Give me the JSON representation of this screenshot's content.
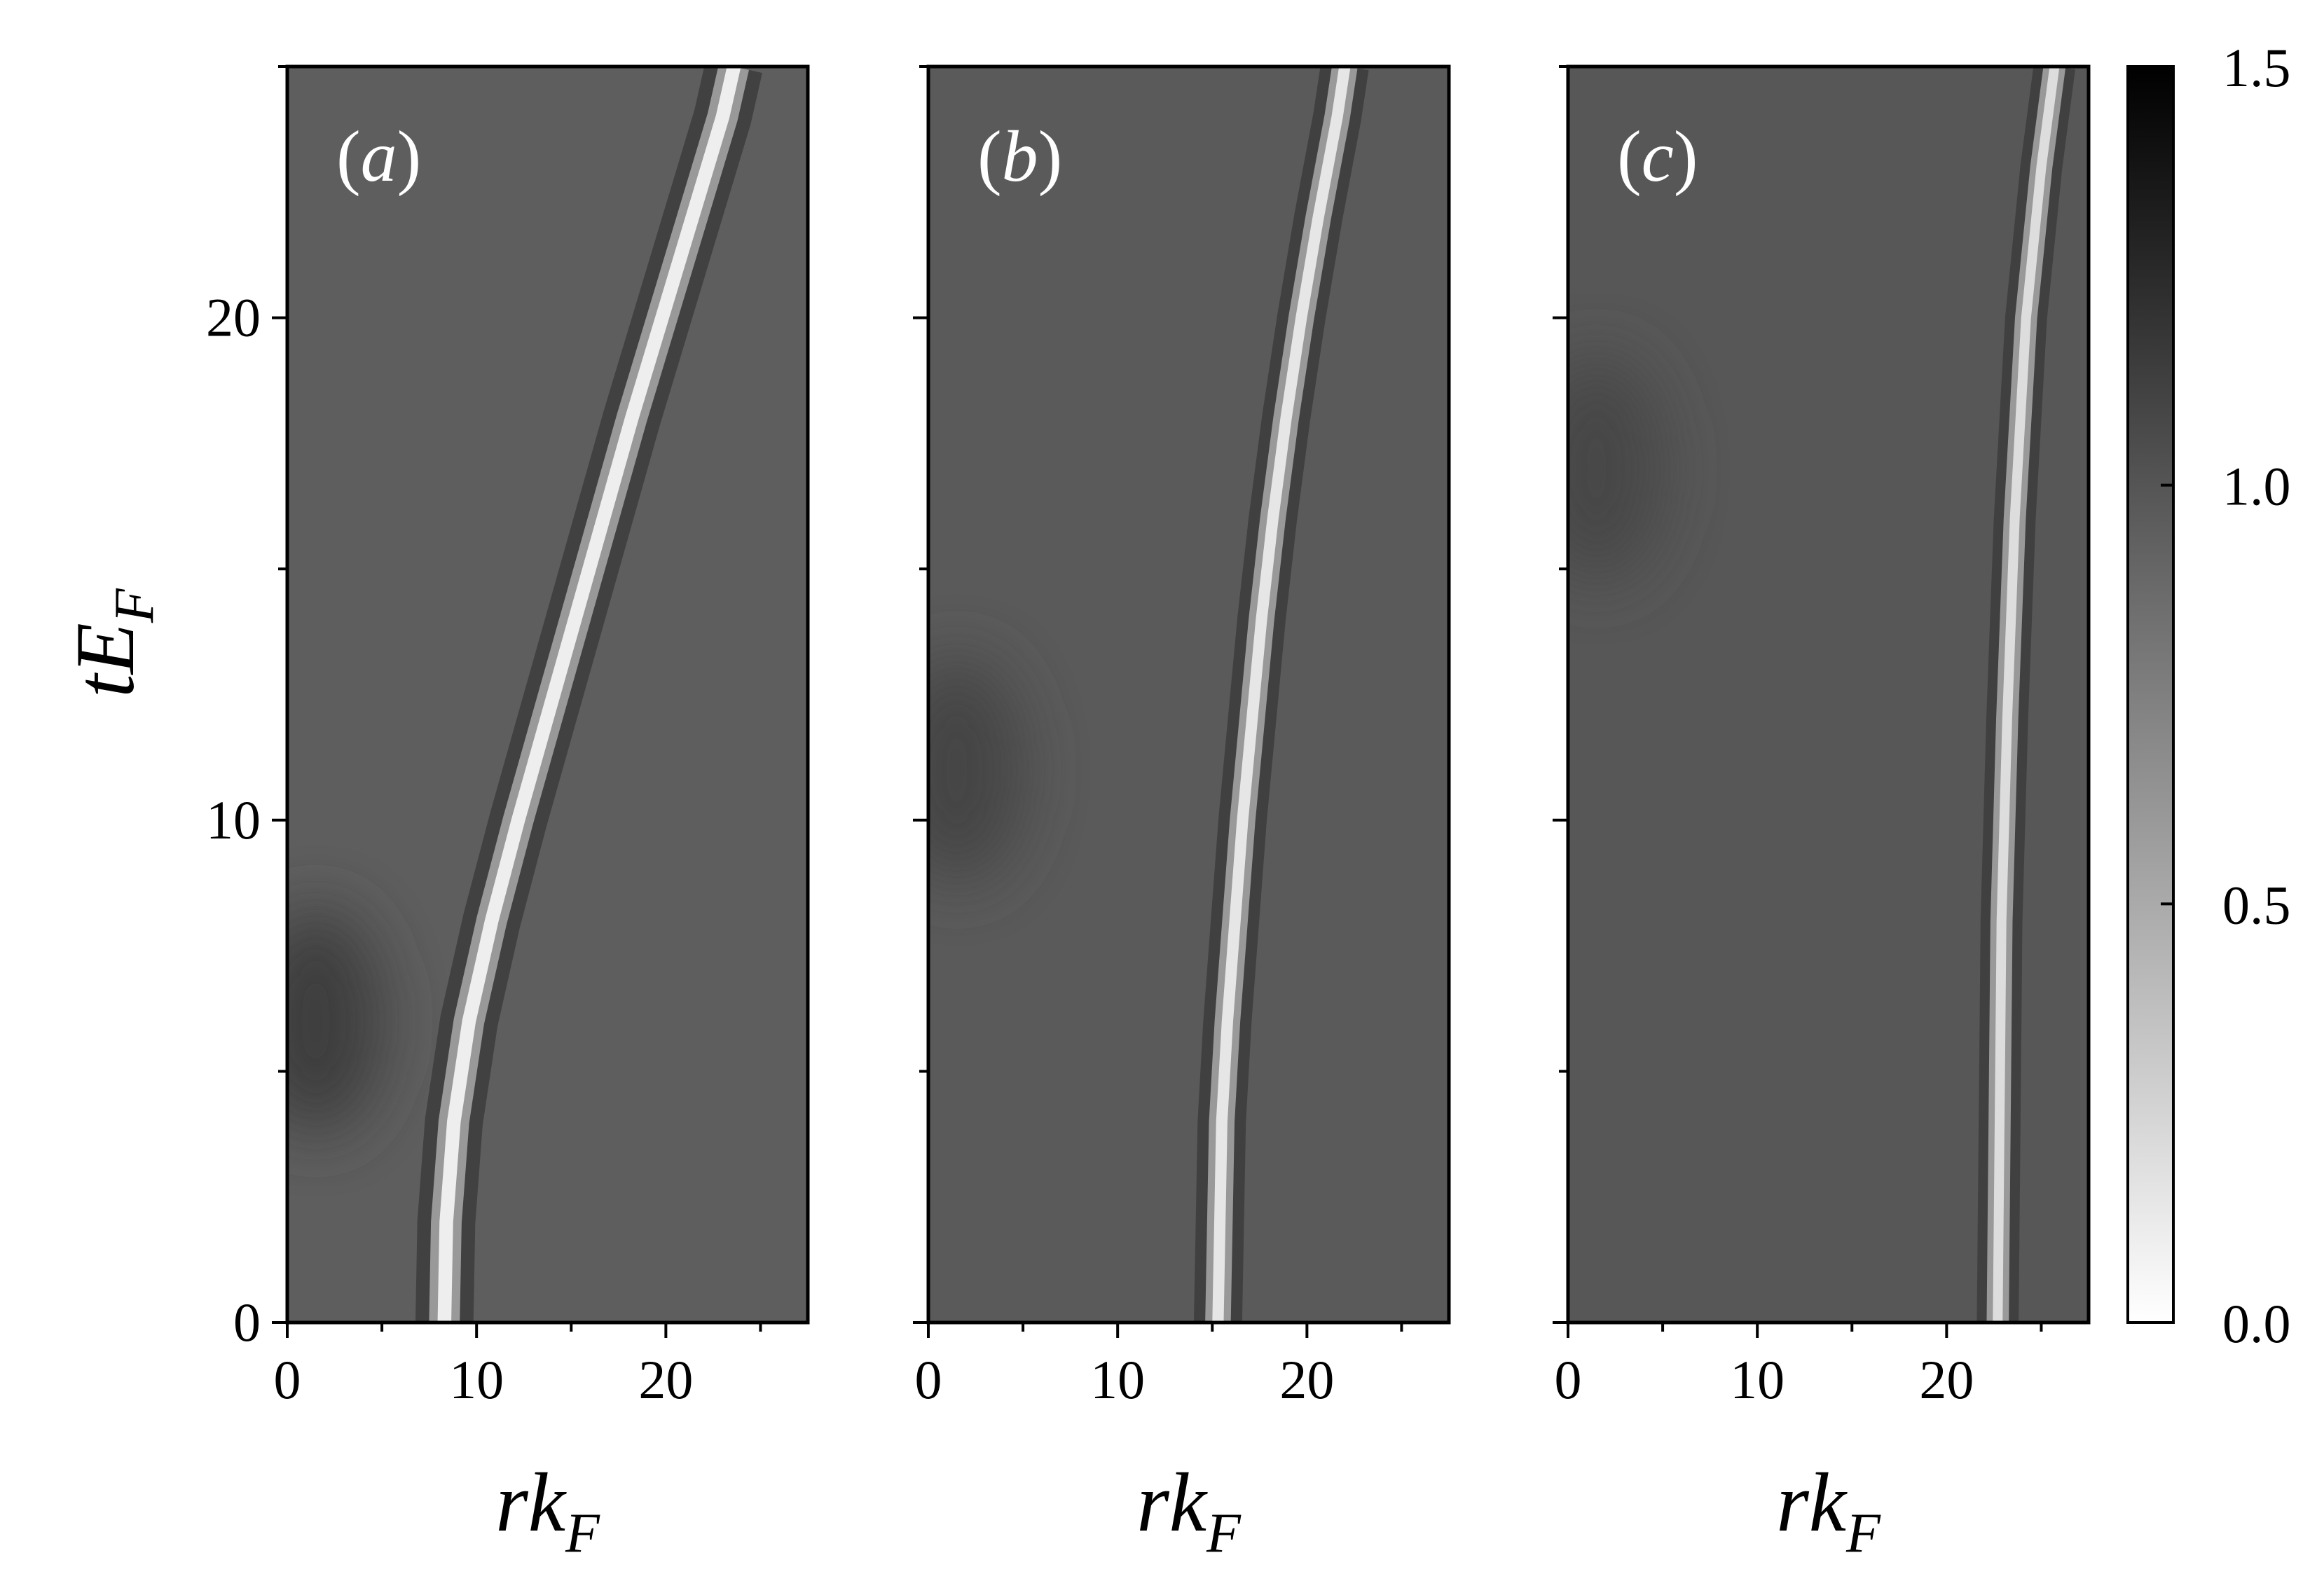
{
  "chart_data": [
    {
      "type": "heatmap",
      "panel_label_open": "(",
      "panel_label_letter": "a",
      "panel_label_close": ")",
      "x": {
        "label_main": "rk",
        "label_sub": "F",
        "range": [
          0,
          27.5
        ],
        "ticks": [
          0,
          10,
          20
        ],
        "tick_labels": [
          "0",
          "10",
          "20"
        ]
      },
      "y": {
        "label_main": "tE",
        "label_sub": "F",
        "range": [
          0,
          25
        ],
        "ticks": [
          0,
          10,
          20
        ],
        "tick_labels": [
          "0",
          "10",
          "20"
        ]
      },
      "colormap": "gray_r",
      "background_value": 0.95,
      "ridge": {
        "min_value": 0.1,
        "width": 0.9,
        "path": [
          [
            8.3,
            0
          ],
          [
            8.4,
            2
          ],
          [
            8.8,
            4
          ],
          [
            9.6,
            6
          ],
          [
            10.8,
            8
          ],
          [
            12.2,
            10
          ],
          [
            13.7,
            12
          ],
          [
            15.2,
            14
          ],
          [
            16.7,
            16
          ],
          [
            18.2,
            18
          ],
          [
            19.8,
            20
          ],
          [
            21.4,
            22
          ],
          [
            23.0,
            24
          ],
          [
            23.6,
            25
          ]
        ]
      },
      "blob": {
        "x": 1.5,
        "y": 6,
        "value": 1.15
      }
    },
    {
      "type": "heatmap",
      "panel_label_open": "(",
      "panel_label_letter": "b",
      "panel_label_close": ")",
      "x": {
        "label_main": "rk",
        "label_sub": "F",
        "range": [
          0,
          27.5
        ],
        "ticks": [
          0,
          10,
          20
        ],
        "tick_labels": [
          "0",
          "10",
          "20"
        ]
      },
      "y": {
        "range": [
          0,
          25
        ],
        "ticks": [
          0,
          10,
          20
        ]
      },
      "colormap": "gray_r",
      "background_value": 0.97,
      "ridge": {
        "min_value": 0.15,
        "width": 0.75,
        "path": [
          [
            15.3,
            0
          ],
          [
            15.4,
            2
          ],
          [
            15.5,
            4
          ],
          [
            15.8,
            6
          ],
          [
            16.2,
            8
          ],
          [
            16.6,
            10
          ],
          [
            17.1,
            12
          ],
          [
            17.6,
            14
          ],
          [
            18.2,
            16
          ],
          [
            18.9,
            18
          ],
          [
            19.7,
            20
          ],
          [
            20.6,
            22
          ],
          [
            21.6,
            24
          ],
          [
            22.0,
            25
          ]
        ]
      },
      "blob": {
        "x": 1.5,
        "y": 11,
        "value": 1.1
      }
    },
    {
      "type": "heatmap",
      "panel_label_open": "(",
      "panel_label_letter": "c",
      "panel_label_close": ")",
      "x": {
        "label_main": "rk",
        "label_sub": "F",
        "range": [
          0,
          27.5
        ],
        "ticks": [
          0,
          10,
          20
        ],
        "tick_labels": [
          "0",
          "10",
          "20"
        ]
      },
      "y": {
        "range": [
          0,
          25
        ],
        "ticks": [
          0,
          10,
          20
        ]
      },
      "colormap": "gray_r",
      "background_value": 0.99,
      "ridge": {
        "min_value": 0.2,
        "width": 0.65,
        "path": [
          [
            22.7,
            0
          ],
          [
            22.8,
            4
          ],
          [
            22.9,
            8
          ],
          [
            23.2,
            12
          ],
          [
            23.6,
            16
          ],
          [
            24.2,
            20
          ],
          [
            25.0,
            23
          ],
          [
            25.7,
            25
          ]
        ]
      },
      "blob": {
        "x": 1.5,
        "y": 17,
        "value": 1.08
      }
    }
  ],
  "colorbar": {
    "range": [
      0,
      1.5
    ],
    "ticks": [
      0.0,
      0.5,
      1.0,
      1.5
    ],
    "tick_labels": [
      "0.0",
      "0.5",
      "1.0",
      "1.5"
    ],
    "colormap": "gray_r"
  }
}
